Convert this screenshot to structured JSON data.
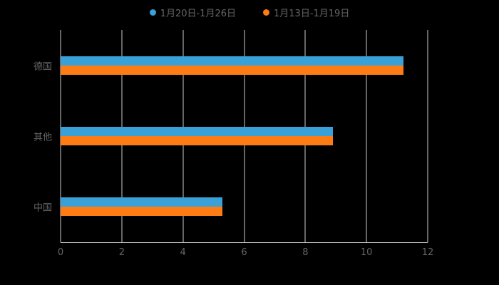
{
  "chart_data": {
    "type": "bar",
    "orientation": "horizontal",
    "categories": [
      "德国",
      "其他",
      "中国"
    ],
    "series": [
      {
        "name": "1月20日-1月26日",
        "color": "#3aa1d8",
        "values": [
          11.2,
          8.9,
          5.3
        ]
      },
      {
        "name": "1月13日-1月19日",
        "color": "#fd7d14",
        "values": [
          11.2,
          8.9,
          5.3
        ]
      }
    ],
    "xlabel": "",
    "ylabel": "",
    "xlim": [
      0,
      12
    ],
    "xticks": [
      0,
      2,
      4,
      6,
      8,
      10,
      12
    ],
    "grid": true,
    "legend_position": "top"
  },
  "colors": {
    "background": "#000000",
    "grid": "#cccccc",
    "axis": "#cccccc",
    "text": "#666666"
  }
}
